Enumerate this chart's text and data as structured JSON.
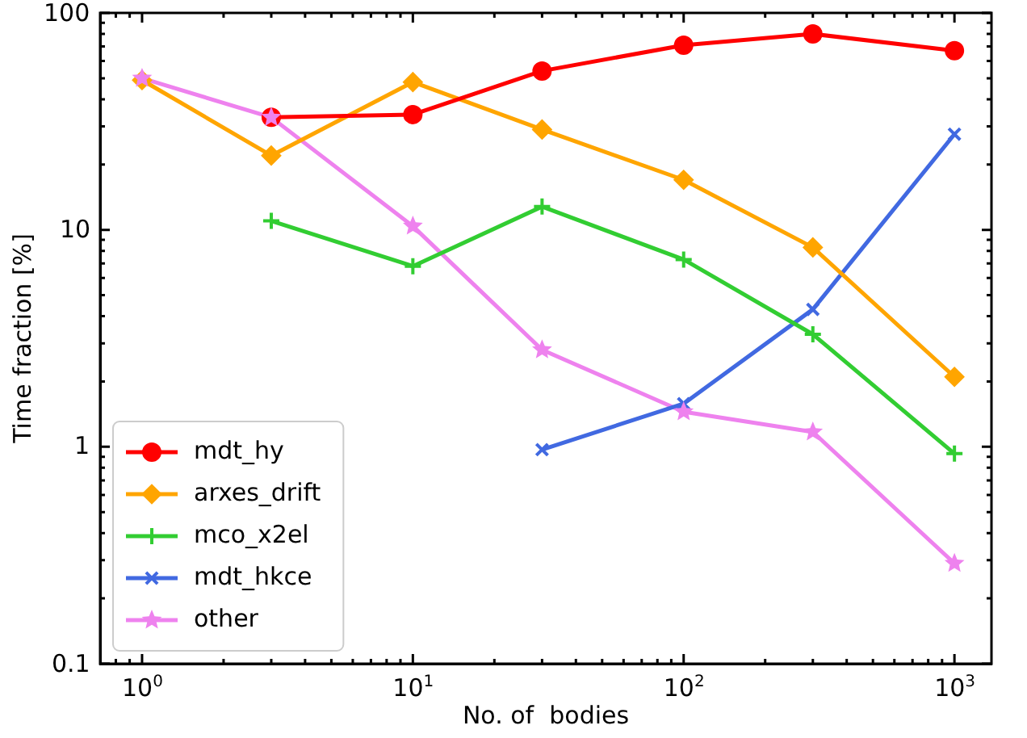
{
  "chart_data": {
    "type": "line",
    "xlabel": "No. of  bodies",
    "ylabel": "Time fraction [%]",
    "log": "xy",
    "legend": "bottom left",
    "grid": false,
    "xlim": [
      0.71,
      1370
    ],
    "ylim": [
      0.1,
      100
    ],
    "xticks": [
      {
        "value": 1,
        "label": "10$^{0}$"
      },
      {
        "value": 10,
        "label": "10$^{1}$"
      },
      {
        "value": 100,
        "label": "10$^{2}$"
      },
      {
        "value": 1000,
        "label": "10$^{3}$"
      }
    ],
    "yticks": [
      0.1,
      1,
      10,
      100
    ],
    "series": [
      {
        "name": "mdt_hy",
        "color": "#ff0000",
        "marker": "circle",
        "x": [
          3,
          10,
          30,
          100,
          300,
          1000
        ],
        "values": [
          33,
          34,
          54,
          71,
          80,
          67
        ]
      },
      {
        "name": "arxes_drift",
        "color": "#ffa500",
        "marker": "diamond",
        "x": [
          1,
          3,
          10,
          30,
          100,
          300,
          1000
        ],
        "values": [
          49,
          22,
          48,
          29,
          17,
          8.3,
          2.1
        ]
      },
      {
        "name": "mco_x2el",
        "color": "#32cd32",
        "marker": "cross",
        "x": [
          3,
          10,
          30,
          100,
          300,
          1000
        ],
        "values": [
          11,
          6.8,
          12.8,
          7.3,
          3.3,
          0.93
        ]
      },
      {
        "name": "mdt_hkce",
        "color": "#4169e1",
        "marker": "x",
        "x": [
          30,
          100,
          300,
          1000
        ],
        "values": [
          0.97,
          1.58,
          4.3,
          27.6
        ]
      },
      {
        "name": "other",
        "color": "#ee82ee",
        "marker": "star",
        "x": [
          1,
          3,
          10,
          30,
          100,
          300,
          1000
        ],
        "values": [
          50,
          33,
          10.4,
          2.8,
          1.45,
          1.17,
          0.29
        ]
      }
    ]
  }
}
